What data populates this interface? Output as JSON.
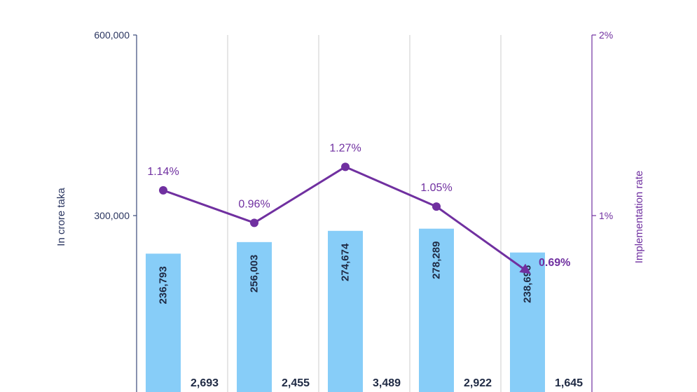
{
  "chart_data": {
    "type": "bar",
    "ylabel": "In crore taka",
    "y2label": "Implementation rate",
    "ylim": [
      0,
      600000
    ],
    "y2lim": [
      0,
      2
    ],
    "left_ticks": [
      {
        "value": 300000,
        "label": "300,000"
      },
      {
        "value": 600000,
        "label": "600,000"
      }
    ],
    "right_ticks": [
      {
        "value": 1,
        "label": "1%"
      },
      {
        "value": 2,
        "label": "2%"
      }
    ],
    "categories": [
      "",
      "",
      "",
      "",
      ""
    ],
    "series": [
      {
        "kind": "bar",
        "color": "#87cdf8",
        "values": [
          236793,
          256003,
          274674,
          278289,
          238696
        ],
        "labels": [
          "236,793",
          "256,003",
          "274,674",
          "278,289",
          "238,696"
        ]
      },
      {
        "kind": "bar",
        "color": "#1f3b7a",
        "values": [
          2693,
          2455,
          3489,
          2922,
          1645
        ],
        "labels": [
          "2,693",
          "2,455",
          "3,489",
          "2,922",
          "1,645"
        ]
      },
      {
        "kind": "line",
        "axis": "right",
        "color": "#7030a0",
        "values": [
          1.14,
          0.96,
          1.27,
          1.05,
          0.69
        ],
        "labels": [
          "1.14%",
          "0.96%",
          "1.27%",
          "1.05%",
          "0.69%"
        ]
      }
    ],
    "grid": true,
    "legend": "none"
  }
}
